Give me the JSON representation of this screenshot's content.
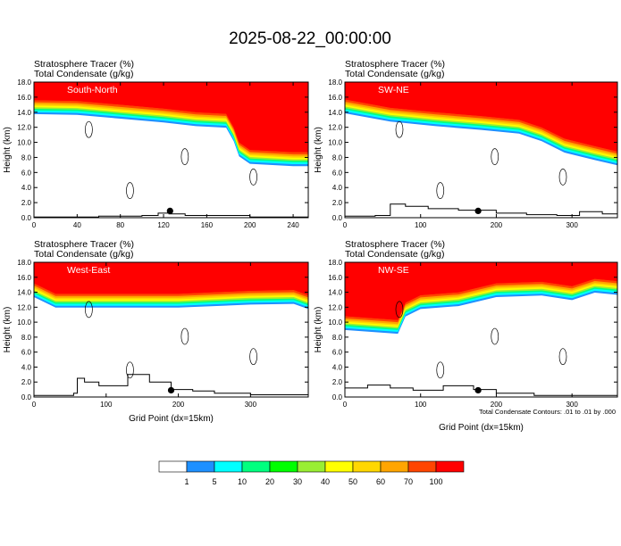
{
  "title": "2025-08-22_00:00:00",
  "header_line1": "Stratosphere Tracer   (%)",
  "header_line2": "Total Condensate   (g/kg)",
  "contour_note": "Total Condensate Contours: .01 to .01 by .000",
  "colorbar": {
    "levels": [
      "1",
      "5",
      "10",
      "20",
      "30",
      "40",
      "50",
      "60",
      "70",
      "100"
    ],
    "colors": [
      "#ffffff",
      "#1e90ff",
      "#00ffff",
      "#00ff7f",
      "#00ff00",
      "#99ee33",
      "#ffff00",
      "#ffd700",
      "#ffa500",
      "#ff4500",
      "#ff0000"
    ]
  },
  "chart_data": [
    {
      "type": "heatmap",
      "panel_label": "South-North",
      "ylabel": "Height (km)",
      "xlabel": "",
      "xlim": [
        0,
        254
      ],
      "ylim": [
        0,
        18
      ],
      "xticks": [
        "0",
        "40",
        "80",
        "120",
        "160",
        "200",
        "240"
      ],
      "yticks": [
        "0.0",
        "2.0",
        "4.0",
        "6.0",
        "8.0",
        "10.0",
        "12.0",
        "14.0",
        "16.0",
        "18.0"
      ],
      "tropopause_km": [
        [
          0,
          15.6
        ],
        [
          40,
          15.5
        ],
        [
          80,
          15.0
        ],
        [
          120,
          14.5
        ],
        [
          150,
          14.0
        ],
        [
          178,
          13.8
        ],
        [
          185,
          12.0
        ],
        [
          190,
          10.0
        ],
        [
          200,
          9.0
        ],
        [
          240,
          8.7
        ],
        [
          254,
          8.7
        ]
      ],
      "terrain_km": [
        [
          0,
          0.1
        ],
        [
          60,
          0.2
        ],
        [
          80,
          0.2
        ],
        [
          100,
          0.3
        ],
        [
          115,
          0.6
        ],
        [
          125,
          0.5
        ],
        [
          140,
          0.3
        ],
        [
          200,
          0.1
        ],
        [
          254,
          0.1
        ]
      ],
      "marker_x": 126
    },
    {
      "type": "heatmap",
      "panel_label": "SW-NE",
      "ylabel": "Height (km)",
      "xlabel": "",
      "xlim": [
        0,
        360
      ],
      "ylim": [
        0,
        18
      ],
      "xticks": [
        "0",
        "100",
        "200",
        "300"
      ],
      "yticks": [
        "0.0",
        "2.0",
        "4.0",
        "6.0",
        "8.0",
        "10.0",
        "12.0",
        "14.0",
        "16.0",
        "18.0"
      ],
      "tropopause_km": [
        [
          0,
          15.7
        ],
        [
          60,
          14.6
        ],
        [
          120,
          14.0
        ],
        [
          180,
          13.5
        ],
        [
          230,
          13.0
        ],
        [
          260,
          12.0
        ],
        [
          290,
          10.5
        ],
        [
          330,
          9.5
        ],
        [
          360,
          8.8
        ]
      ],
      "terrain_km": [
        [
          0,
          0.2
        ],
        [
          40,
          0.3
        ],
        [
          60,
          1.8
        ],
        [
          80,
          1.5
        ],
        [
          110,
          1.2
        ],
        [
          150,
          1.0
        ],
        [
          200,
          0.6
        ],
        [
          240,
          0.4
        ],
        [
          280,
          0.3
        ],
        [
          310,
          0.8
        ],
        [
          340,
          0.5
        ],
        [
          360,
          0.3
        ]
      ],
      "marker_x": 176
    },
    {
      "type": "heatmap",
      "panel_label": "West-East",
      "ylabel": "Height (km)",
      "xlabel": "Grid Point (dx=15km)",
      "xlim": [
        0,
        380
      ],
      "ylim": [
        0,
        18
      ],
      "xticks": [
        "0",
        "100",
        "200",
        "300"
      ],
      "yticks": [
        "0.0",
        "2.0",
        "4.0",
        "6.0",
        "8.0",
        "10.0",
        "12.0",
        "14.0",
        "16.0",
        "18.0"
      ],
      "tropopause_km": [
        [
          0,
          15.2
        ],
        [
          30,
          13.8
        ],
        [
          100,
          13.8
        ],
        [
          200,
          13.8
        ],
        [
          300,
          14.2
        ],
        [
          360,
          14.3
        ],
        [
          380,
          13.6
        ]
      ],
      "terrain_km": [
        [
          0,
          0.2
        ],
        [
          55,
          0.5
        ],
        [
          60,
          2.5
        ],
        [
          70,
          2.0
        ],
        [
          90,
          1.5
        ],
        [
          130,
          3.0
        ],
        [
          160,
          2.0
        ],
        [
          190,
          1.0
        ],
        [
          220,
          0.8
        ],
        [
          250,
          0.5
        ],
        [
          300,
          0.3
        ],
        [
          380,
          0.2
        ]
      ],
      "marker_x": 190
    },
    {
      "type": "heatmap",
      "panel_label": "NW-SE",
      "ylabel": "Height (km)",
      "xlabel": "Grid Point (dx=15km)",
      "xlim": [
        0,
        360
      ],
      "ylim": [
        0,
        18
      ],
      "xticks": [
        "0",
        "100",
        "200",
        "300"
      ],
      "yticks": [
        "0.0",
        "2.0",
        "4.0",
        "6.0",
        "8.0",
        "10.0",
        "12.0",
        "14.0",
        "16.0",
        "18.0"
      ],
      "tropopause_km": [
        [
          0,
          10.8
        ],
        [
          70,
          10.3
        ],
        [
          80,
          12.6
        ],
        [
          100,
          13.6
        ],
        [
          150,
          14.0
        ],
        [
          200,
          15.2
        ],
        [
          260,
          15.4
        ],
        [
          300,
          14.8
        ],
        [
          330,
          15.8
        ],
        [
          360,
          15.5
        ]
      ],
      "terrain_km": [
        [
          0,
          1.2
        ],
        [
          30,
          1.6
        ],
        [
          60,
          1.2
        ],
        [
          90,
          0.9
        ],
        [
          130,
          1.5
        ],
        [
          170,
          1.0
        ],
        [
          200,
          0.5
        ],
        [
          250,
          0.2
        ],
        [
          360,
          0.1
        ]
      ],
      "marker_x": 176
    }
  ]
}
